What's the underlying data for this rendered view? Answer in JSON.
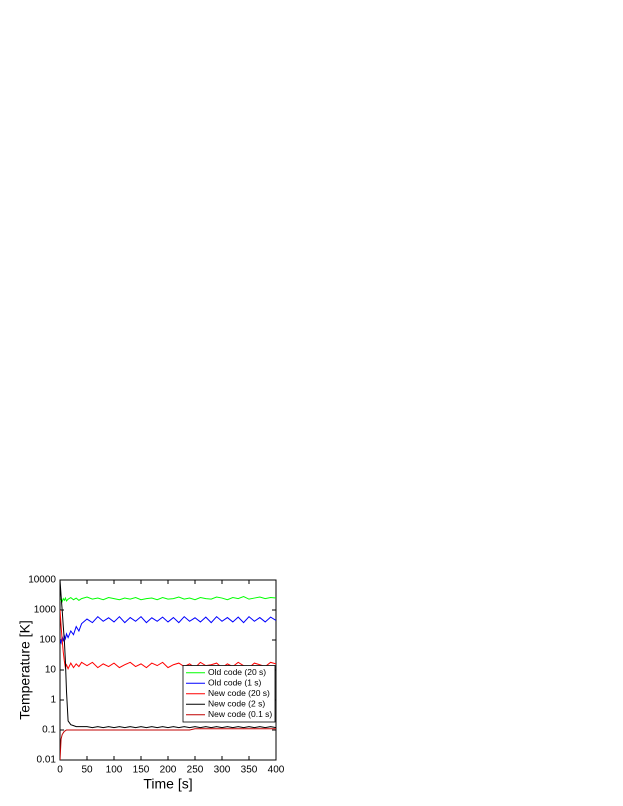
{
  "chart_data": {
    "type": "line",
    "xlabel": "Time [s]",
    "ylabel": "Temperature [K]",
    "x": [
      0,
      2,
      4,
      6,
      8,
      10,
      12,
      15,
      20,
      25,
      30,
      35,
      40,
      50,
      60,
      70,
      80,
      90,
      100,
      110,
      120,
      130,
      140,
      150,
      160,
      170,
      180,
      190,
      200,
      210,
      220,
      230,
      240,
      250,
      260,
      270,
      280,
      290,
      300,
      310,
      320,
      330,
      340,
      350,
      360,
      370,
      380,
      390,
      400
    ],
    "series": [
      {
        "name": "Old code (20 s)",
        "color": "#00ff00",
        "values": [
          2000,
          2300,
          1900,
          2400,
          2100,
          2500,
          2000,
          2300,
          2600,
          2200,
          2500,
          2100,
          2400,
          2700,
          2300,
          2500,
          2200,
          2600,
          2400,
          2200,
          2500,
          2300,
          2600,
          2200,
          2400,
          2500,
          2200,
          2600,
          2300,
          2400,
          2700,
          2300,
          2500,
          2200,
          2600,
          2400,
          2300,
          2700,
          2500,
          2200,
          2600,
          2400,
          2800,
          2300,
          2500,
          2700,
          2400,
          2600,
          2500
        ]
      },
      {
        "name": "Old code (1 s)",
        "color": "#0000ff",
        "values": [
          100,
          80,
          130,
          90,
          140,
          110,
          160,
          120,
          200,
          150,
          280,
          200,
          350,
          500,
          380,
          600,
          420,
          550,
          400,
          600,
          380,
          560,
          420,
          600,
          380,
          550,
          420,
          580,
          400,
          560,
          380,
          600,
          420,
          550,
          400,
          580,
          380,
          600,
          420,
          560,
          400,
          580,
          380,
          600,
          420,
          560,
          400,
          580,
          450
        ]
      },
      {
        "name": "New code (20 s)",
        "color": "#ff0000",
        "values": [
          1000,
          300,
          100,
          40,
          20,
          12,
          15,
          11,
          17,
          12,
          16,
          13,
          18,
          14,
          18,
          12,
          16,
          13,
          17,
          12,
          15,
          18,
          13,
          16,
          12,
          17,
          14,
          18,
          12,
          15,
          17,
          13,
          16,
          12,
          18,
          14,
          15,
          17,
          12,
          16,
          13,
          18,
          14,
          12,
          17,
          15,
          13,
          18,
          16
        ]
      },
      {
        "name": "New code (2 s)",
        "color": "#000000",
        "values": [
          10000,
          3000,
          1000,
          300,
          100,
          20,
          2,
          0.2,
          0.15,
          0.14,
          0.13,
          0.13,
          0.13,
          0.13,
          0.12,
          0.13,
          0.12,
          0.13,
          0.12,
          0.13,
          0.12,
          0.13,
          0.12,
          0.13,
          0.12,
          0.13,
          0.12,
          0.13,
          0.12,
          0.13,
          0.12,
          0.13,
          0.12,
          0.13,
          0.12,
          0.13,
          0.12,
          0.13,
          0.12,
          0.13,
          0.12,
          0.13,
          0.12,
          0.13,
          0.12,
          0.13,
          0.12,
          0.13,
          0.12
        ]
      },
      {
        "name": "New code (0.1 s)",
        "color": "#c00000",
        "values": [
          0.01,
          0.05,
          0.07,
          0.08,
          0.09,
          0.095,
          0.1,
          0.1,
          0.1,
          0.1,
          0.1,
          0.1,
          0.1,
          0.1,
          0.1,
          0.1,
          0.1,
          0.1,
          0.1,
          0.1,
          0.1,
          0.1,
          0.1,
          0.1,
          0.1,
          0.1,
          0.1,
          0.1,
          0.1,
          0.1,
          0.1,
          0.1,
          0.1,
          0.11,
          0.11,
          0.11,
          0.11,
          0.11,
          0.11,
          0.11,
          0.11,
          0.11,
          0.11,
          0.11,
          0.11,
          0.11,
          0.11,
          0.11,
          0.11
        ]
      }
    ],
    "xlim": [
      0,
      400
    ],
    "xticks": [
      0,
      50,
      100,
      150,
      200,
      250,
      300,
      350,
      400
    ],
    "ylim": [
      0.01,
      10000
    ],
    "yticks": [
      0.01,
      0.1,
      1,
      10,
      100,
      1000,
      10000
    ],
    "log_y": true,
    "grid": false,
    "legend": "lower right"
  }
}
